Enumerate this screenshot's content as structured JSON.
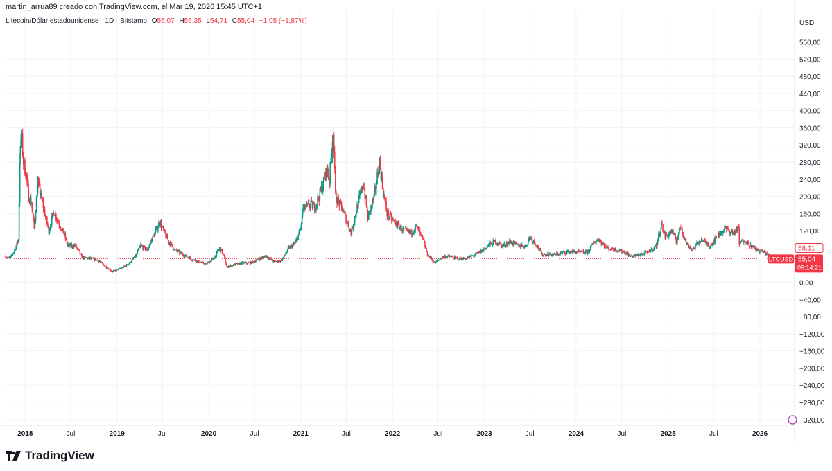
{
  "header": {
    "credit": "martin_arrua89 creado con TradingView.com, el Mar 19, 2026 15:45 UTC+1"
  },
  "legend": {
    "symbol": "Litecoin/Dólar estadounidense · 1D · Bitstamp",
    "o_label": "O",
    "o_value": "56,07",
    "h_label": "H",
    "h_value": "56,35",
    "l_label": "L",
    "l_value": "54,71",
    "c_label": "C",
    "c_value": "55,04",
    "change": "−1,05 (−1,87%)"
  },
  "brand": {
    "name": "TradingView"
  },
  "colors": {
    "up": "#089981",
    "down": "#f23645",
    "grid": "#f0f3fa",
    "axis_text": "#131722",
    "price_line": "#f23645"
  },
  "price_axis": {
    "currency": "USD",
    "ticks": [
      "560,00",
      "520,00",
      "480,00",
      "440,00",
      "400,00",
      "360,00",
      "320,00",
      "280,00",
      "240,00",
      "200,00",
      "160,00",
      "120,00",
      "0,00",
      "−40,00",
      "−80,00",
      "−120,00",
      "−160,00",
      "−200,00",
      "−240,00",
      "−280,00",
      "−320,00"
    ],
    "last_label": "58,11",
    "current_price": "55,04",
    "countdown": "09:14:21",
    "symbol_tag": "LTCUSD"
  },
  "chart_data": {
    "type": "candlestick",
    "symbol": "LTCUSD",
    "interval": "1D",
    "exchange": "Bitstamp",
    "x_labels": [
      "2018",
      "Jul",
      "2019",
      "Jul",
      "2020",
      "Jul",
      "2021",
      "Jul",
      "2022",
      "Jul",
      "2023",
      "Jul",
      "2024",
      "Jul",
      "2025",
      "Jul",
      "2026"
    ],
    "y_range": [
      -330,
      585
    ],
    "last_close": 55.04,
    "reference_level": 58.11,
    "series": [
      {
        "date": "2017-10-15",
        "close": 60
      },
      {
        "date": "2017-11-01",
        "close": 55
      },
      {
        "date": "2017-11-20",
        "close": 75
      },
      {
        "date": "2017-12-05",
        "close": 100
      },
      {
        "date": "2017-12-12",
        "close": 310
      },
      {
        "date": "2017-12-19",
        "close": 330
      },
      {
        "date": "2017-12-25",
        "close": 280
      },
      {
        "date": "2018-01-05",
        "close": 250
      },
      {
        "date": "2018-01-15",
        "close": 200
      },
      {
        "date": "2018-01-25",
        "close": 190
      },
      {
        "date": "2018-02-06",
        "close": 125
      },
      {
        "date": "2018-02-20",
        "close": 230
      },
      {
        "date": "2018-03-05",
        "close": 200
      },
      {
        "date": "2018-03-20",
        "close": 160
      },
      {
        "date": "2018-04-05",
        "close": 120
      },
      {
        "date": "2018-04-25",
        "close": 165
      },
      {
        "date": "2018-05-10",
        "close": 145
      },
      {
        "date": "2018-06-01",
        "close": 118
      },
      {
        "date": "2018-06-20",
        "close": 85
      },
      {
        "date": "2018-07-20",
        "close": 85
      },
      {
        "date": "2018-08-15",
        "close": 58
      },
      {
        "date": "2018-09-15",
        "close": 55
      },
      {
        "date": "2018-10-15",
        "close": 52
      },
      {
        "date": "2018-11-20",
        "close": 35
      },
      {
        "date": "2018-12-15",
        "close": 25
      },
      {
        "date": "2019-01-15",
        "close": 32
      },
      {
        "date": "2019-02-15",
        "close": 42
      },
      {
        "date": "2019-03-15",
        "close": 60
      },
      {
        "date": "2019-04-05",
        "close": 85
      },
      {
        "date": "2019-05-01",
        "close": 75
      },
      {
        "date": "2019-05-20",
        "close": 100
      },
      {
        "date": "2019-06-20",
        "close": 140
      },
      {
        "date": "2019-07-05",
        "close": 120
      },
      {
        "date": "2019-07-25",
        "close": 95
      },
      {
        "date": "2019-08-20",
        "close": 75
      },
      {
        "date": "2019-09-20",
        "close": 65
      },
      {
        "date": "2019-10-20",
        "close": 55
      },
      {
        "date": "2019-11-20",
        "close": 48
      },
      {
        "date": "2019-12-20",
        "close": 42
      },
      {
        "date": "2020-01-20",
        "close": 55
      },
      {
        "date": "2020-02-15",
        "close": 80
      },
      {
        "date": "2020-03-01",
        "close": 62
      },
      {
        "date": "2020-03-13",
        "close": 35
      },
      {
        "date": "2020-04-15",
        "close": 42
      },
      {
        "date": "2020-05-15",
        "close": 45
      },
      {
        "date": "2020-06-15",
        "close": 45
      },
      {
        "date": "2020-07-20",
        "close": 55
      },
      {
        "date": "2020-08-15",
        "close": 62
      },
      {
        "date": "2020-09-15",
        "close": 48
      },
      {
        "date": "2020-10-15",
        "close": 50
      },
      {
        "date": "2020-11-15",
        "close": 80
      },
      {
        "date": "2020-12-10",
        "close": 90
      },
      {
        "date": "2020-12-31",
        "close": 125
      },
      {
        "date": "2021-01-10",
        "close": 170
      },
      {
        "date": "2021-02-10",
        "close": 180
      },
      {
        "date": "2021-02-25",
        "close": 175
      },
      {
        "date": "2021-03-15",
        "close": 200
      },
      {
        "date": "2021-04-15",
        "close": 260
      },
      {
        "date": "2021-04-25",
        "close": 240
      },
      {
        "date": "2021-05-10",
        "close": 360
      },
      {
        "date": "2021-05-19",
        "close": 200
      },
      {
        "date": "2021-06-15",
        "close": 170
      },
      {
        "date": "2021-07-20",
        "close": 115
      },
      {
        "date": "2021-08-15",
        "close": 180
      },
      {
        "date": "2021-09-07",
        "close": 230
      },
      {
        "date": "2021-09-25",
        "close": 150
      },
      {
        "date": "2021-10-20",
        "close": 200
      },
      {
        "date": "2021-11-10",
        "close": 280
      },
      {
        "date": "2021-11-25",
        "close": 210
      },
      {
        "date": "2021-12-10",
        "close": 160
      },
      {
        "date": "2022-01-15",
        "close": 135
      },
      {
        "date": "2022-02-15",
        "close": 120
      },
      {
        "date": "2022-03-15",
        "close": 115
      },
      {
        "date": "2022-04-05",
        "close": 130
      },
      {
        "date": "2022-05-01",
        "close": 100
      },
      {
        "date": "2022-05-20",
        "close": 65
      },
      {
        "date": "2022-06-18",
        "close": 45
      },
      {
        "date": "2022-07-20",
        "close": 60
      },
      {
        "date": "2022-08-15",
        "close": 60
      },
      {
        "date": "2022-09-15",
        "close": 55
      },
      {
        "date": "2022-10-15",
        "close": 55
      },
      {
        "date": "2022-11-10",
        "close": 60
      },
      {
        "date": "2022-12-15",
        "close": 70
      },
      {
        "date": "2023-01-15",
        "close": 85
      },
      {
        "date": "2023-02-15",
        "close": 95
      },
      {
        "date": "2023-03-15",
        "close": 85
      },
      {
        "date": "2023-04-15",
        "close": 95
      },
      {
        "date": "2023-05-15",
        "close": 85
      },
      {
        "date": "2023-06-15",
        "close": 85
      },
      {
        "date": "2023-07-01",
        "close": 105
      },
      {
        "date": "2023-07-25",
        "close": 90
      },
      {
        "date": "2023-08-17",
        "close": 65
      },
      {
        "date": "2023-09-15",
        "close": 65
      },
      {
        "date": "2023-10-15",
        "close": 65
      },
      {
        "date": "2023-11-15",
        "close": 70
      },
      {
        "date": "2023-12-15",
        "close": 72
      },
      {
        "date": "2024-01-15",
        "close": 70
      },
      {
        "date": "2024-02-15",
        "close": 70
      },
      {
        "date": "2024-03-15",
        "close": 95
      },
      {
        "date": "2024-04-01",
        "close": 100
      },
      {
        "date": "2024-05-01",
        "close": 80
      },
      {
        "date": "2024-06-15",
        "close": 75
      },
      {
        "date": "2024-07-15",
        "close": 70
      },
      {
        "date": "2024-08-05",
        "close": 60
      },
      {
        "date": "2024-09-15",
        "close": 65
      },
      {
        "date": "2024-10-15",
        "close": 70
      },
      {
        "date": "2024-11-15",
        "close": 85
      },
      {
        "date": "2024-12-05",
        "close": 135
      },
      {
        "date": "2024-12-20",
        "close": 105
      },
      {
        "date": "2025-01-15",
        "close": 120
      },
      {
        "date": "2025-02-03",
        "close": 95
      },
      {
        "date": "2025-02-20",
        "close": 130
      },
      {
        "date": "2025-03-15",
        "close": 90
      },
      {
        "date": "2025-04-07",
        "close": 75
      },
      {
        "date": "2025-05-10",
        "close": 100
      },
      {
        "date": "2025-06-15",
        "close": 85
      },
      {
        "date": "2025-07-20",
        "close": 110
      },
      {
        "date": "2025-08-15",
        "close": 125
      },
      {
        "date": "2025-09-15",
        "close": 115
      },
      {
        "date": "2025-10-10",
        "close": 125
      },
      {
        "date": "2025-10-11",
        "close": 90
      },
      {
        "date": "2025-11-01",
        "close": 100
      },
      {
        "date": "2025-11-25",
        "close": 85
      },
      {
        "date": "2025-12-20",
        "close": 75
      },
      {
        "date": "2026-01-20",
        "close": 70
      },
      {
        "date": "2026-02-10",
        "close": 60
      },
      {
        "date": "2026-03-19",
        "close": 55.04
      }
    ]
  }
}
